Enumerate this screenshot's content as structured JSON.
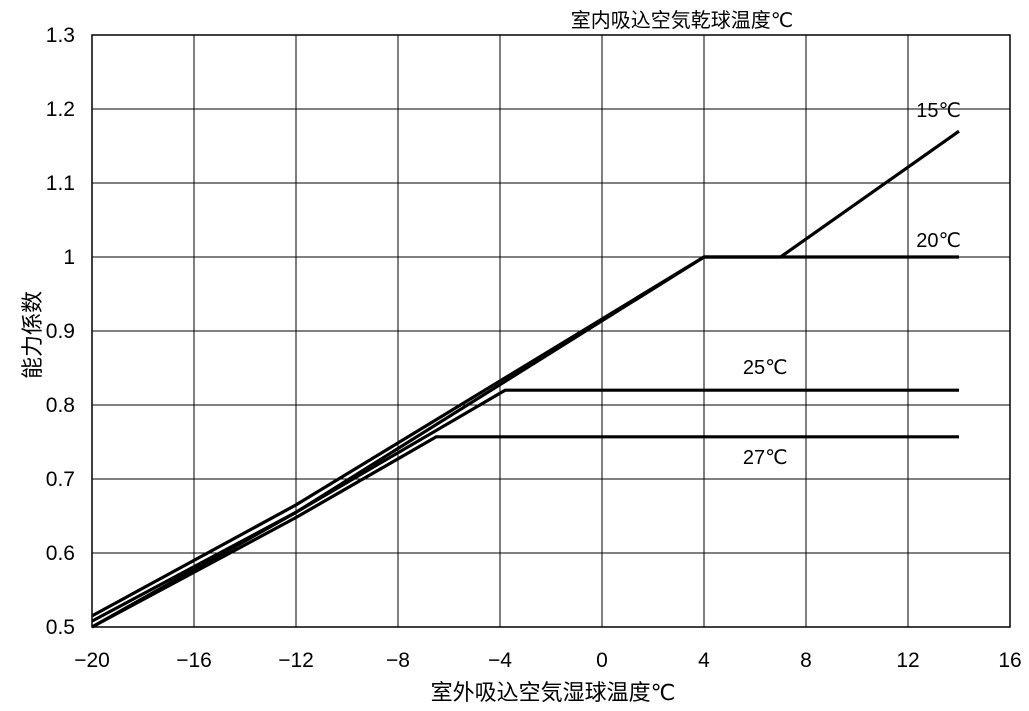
{
  "chart_data": {
    "type": "line",
    "title": "室内吸込空気乾球温度℃",
    "xlabel": "室外吸込空気湿球温度℃",
    "ylabel": "能力係数",
    "xlim": [
      -20,
      16
    ],
    "ylim": [
      0.5,
      1.3
    ],
    "x_ticks": [
      -20,
      -16,
      -12,
      -8,
      -4,
      0,
      4,
      8,
      12,
      16
    ],
    "y_ticks": [
      0.5,
      0.6,
      0.7,
      0.8,
      0.9,
      1,
      1.1,
      1.2,
      1.3
    ],
    "x_tick_labels": [
      "−20",
      "−16",
      "−12",
      "−8",
      "−4",
      "0",
      "4",
      "8",
      "12",
      "16"
    ],
    "y_tick_labels": [
      "0.5",
      "0.6",
      "0.7",
      "0.8",
      "0.9",
      "1",
      "1.1",
      "1.2",
      "1.3"
    ],
    "grid": true,
    "series": [
      {
        "name": "15℃",
        "points": [
          [
            -20,
            0.515
          ],
          [
            -12,
            0.665
          ],
          [
            4,
            1.0
          ],
          [
            7.0,
            1.0
          ],
          [
            14,
            1.17
          ]
        ]
      },
      {
        "name": "20℃",
        "points": [
          [
            -20,
            0.5
          ],
          [
            -12,
            0.655
          ],
          [
            4,
            1.0
          ],
          [
            14,
            1.0
          ]
        ]
      },
      {
        "name": "25℃",
        "points": [
          [
            -20,
            0.508
          ],
          [
            -12,
            0.655
          ],
          [
            -3.8,
            0.82
          ],
          [
            14,
            0.82
          ]
        ]
      },
      {
        "name": "27℃",
        "points": [
          [
            -20,
            0.5
          ],
          [
            -12,
            0.648
          ],
          [
            -6.5,
            0.757
          ],
          [
            14,
            0.757
          ]
        ]
      }
    ]
  }
}
